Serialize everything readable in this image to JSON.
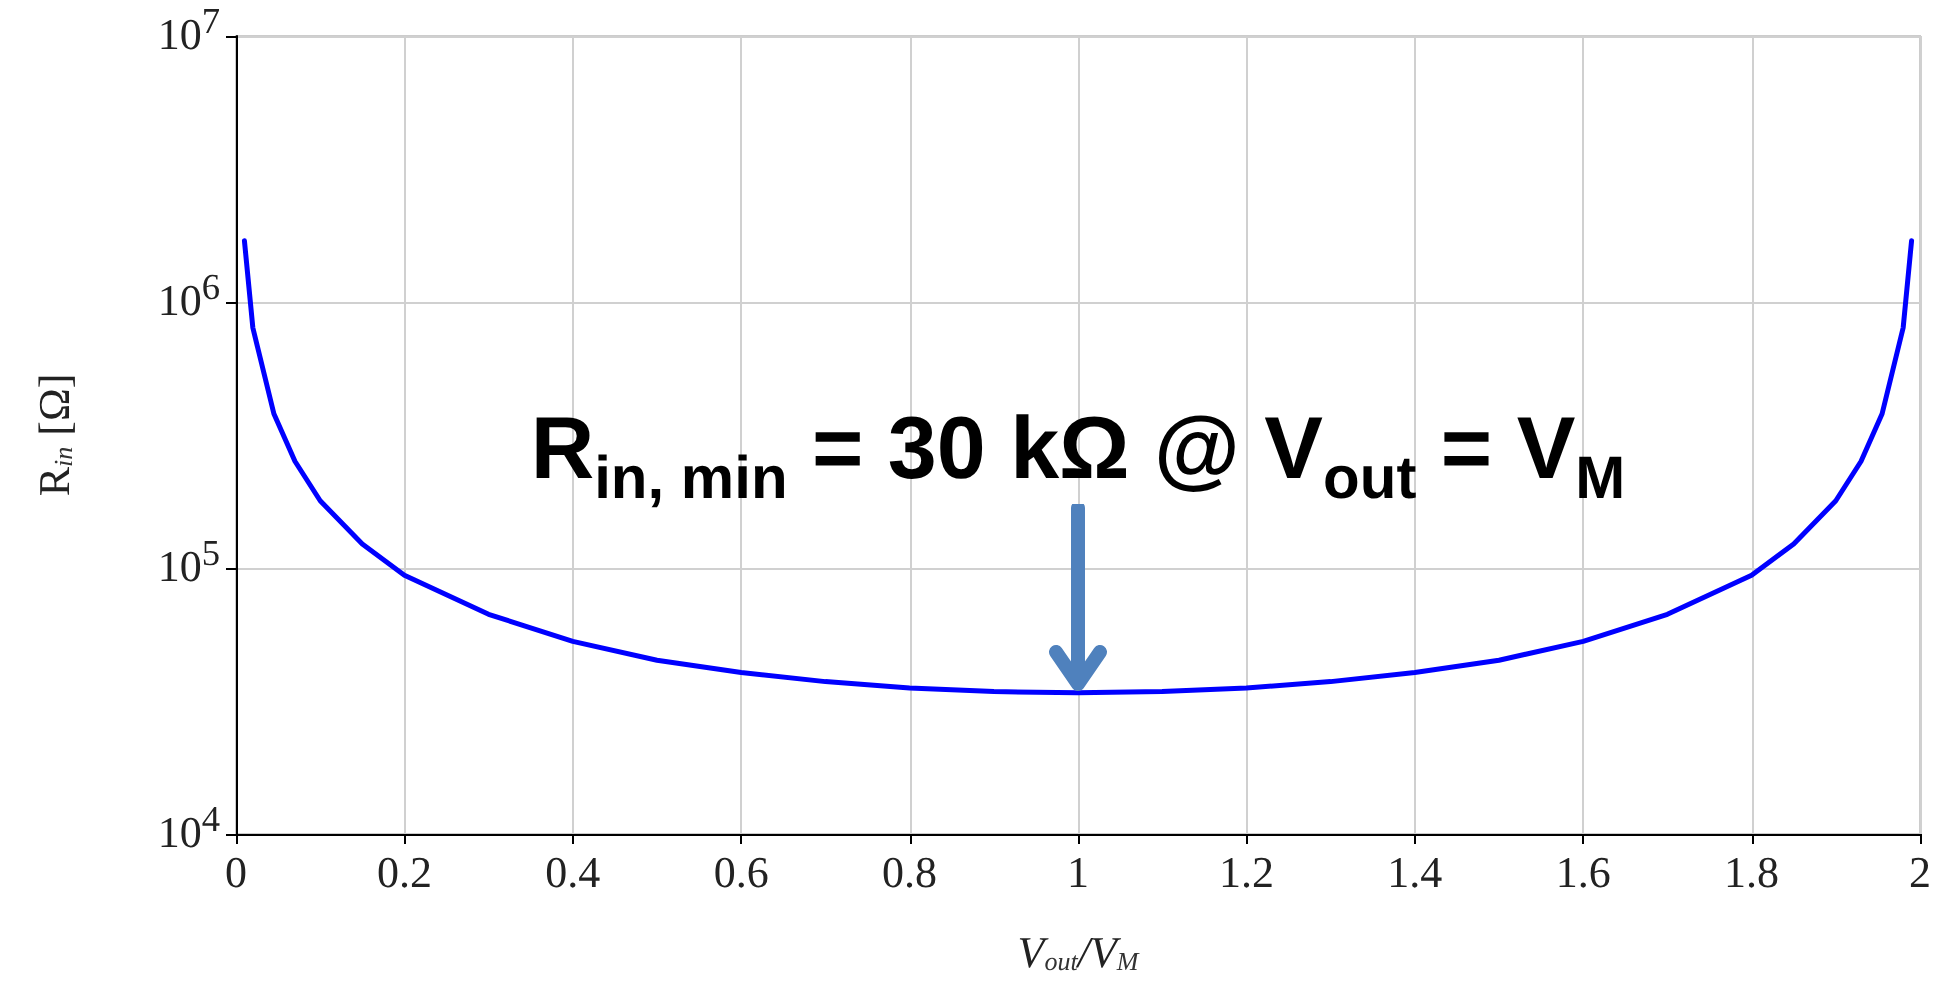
{
  "chart_data": {
    "type": "line",
    "xlabel": "V$_{out}$/V$_{M}$",
    "ylabel": "R$_{in}$ [Ω]",
    "log": "y",
    "grid": true,
    "marker": "none",
    "line_style": "solid",
    "xlim": [
      0,
      2
    ],
    "xticks": [
      0,
      0.2,
      0.4,
      0.6,
      0.8,
      1,
      1.2,
      1.4,
      1.6,
      1.8,
      2
    ],
    "ylim": [
      10000,
      10000000
    ],
    "yticks": [
      {
        "value": 10000,
        "label": "10$^{4}$"
      },
      {
        "value": 100000,
        "label": "10$^{5}$"
      },
      {
        "value": 1000000,
        "label": "10$^{6}$"
      },
      {
        "value": 10000000,
        "label": "10$^{7}$"
      }
    ],
    "x": [
      0.01,
      0.02,
      0.045,
      0.07,
      0.1,
      0.15,
      0.2,
      0.3,
      0.4,
      0.5,
      0.6,
      0.7,
      0.8,
      0.9,
      1.0,
      1.1,
      1.2,
      1.3,
      1.4,
      1.5,
      1.6,
      1.7,
      1.8,
      1.85,
      1.9,
      1.93,
      1.955,
      1.98,
      1.99
    ],
    "series": [
      {
        "color": "#0000ff",
        "values": [
          1700000,
          800000,
          380000,
          252000,
          179000,
          123000,
          94000,
          67000,
          53000,
          45000,
          40500,
          37400,
          35400,
          34300,
          34000,
          34300,
          35400,
          37400,
          40500,
          45000,
          53000,
          67000,
          94000,
          123000,
          179000,
          252000,
          380000,
          800000,
          1700000
        ]
      }
    ],
    "annotations": [
      {
        "text": "R$_{in, min}$ = 30 kΩ @ V$_{out}$ = V$_{M}$",
        "x": 1,
        "y": 34000
      }
    ]
  }
}
